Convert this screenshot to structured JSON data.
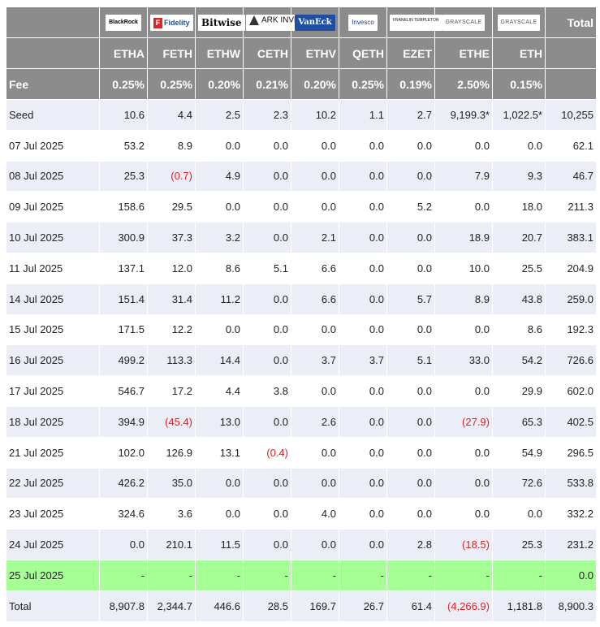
{
  "issuers": [
    {
      "logo": "BlackRock",
      "logo_icon": "blackrock-logo",
      "ticker": "ETHA",
      "fee": "0.25%"
    },
    {
      "logo": "Fidelity",
      "logo_icon": "fidelity-logo",
      "ticker": "FETH",
      "fee": "0.25%"
    },
    {
      "logo": "Bitwise",
      "logo_icon": "bitwise-logo",
      "ticker": "ETHW",
      "fee": "0.20%"
    },
    {
      "logo": "ARK INVEST",
      "logo_icon": "ark-invest-logo",
      "ticker": "CETH",
      "fee": "0.21%"
    },
    {
      "logo": "VanEck",
      "logo_icon": "vaneck-logo",
      "ticker": "ETHV",
      "fee": "0.20%"
    },
    {
      "logo": "Invesco",
      "logo_icon": "invesco-logo",
      "ticker": "QETH",
      "fee": "0.25%"
    },
    {
      "logo": "FRANKLIN TEMPLETON",
      "logo_icon": "franklin-templeton-logo",
      "ticker": "EZET",
      "fee": "0.19%"
    },
    {
      "logo": "GRAYSCALE",
      "logo_icon": "grayscale-logo",
      "ticker": "ETHE",
      "fee": "2.50%"
    },
    {
      "logo": "GRAYSCALE",
      "logo_icon": "grayscale-logo",
      "ticker": "ETH",
      "fee": "0.15%"
    }
  ],
  "header": {
    "total_label": "Total",
    "fee_label": "Fee"
  },
  "rows": [
    {
      "date": "Seed",
      "values": [
        "10.6",
        "4.4",
        "2.5",
        "2.3",
        "10.2",
        "1.1",
        "2.7",
        "9,199.3*",
        "1,022.5*"
      ],
      "total": "10,255"
    },
    {
      "date": "07 Jul 2025",
      "values": [
        "53.2",
        "8.9",
        "0.0",
        "0.0",
        "0.0",
        "0.0",
        "0.0",
        "0.0",
        "0.0"
      ],
      "total": "62.1"
    },
    {
      "date": "08 Jul 2025",
      "values": [
        "25.3",
        "(0.7)",
        "4.9",
        "0.0",
        "0.0",
        "0.0",
        "0.0",
        "7.9",
        "9.3"
      ],
      "total": "46.7"
    },
    {
      "date": "09 Jul 2025",
      "values": [
        "158.6",
        "29.5",
        "0.0",
        "0.0",
        "0.0",
        "0.0",
        "5.2",
        "0.0",
        "18.0"
      ],
      "total": "211.3"
    },
    {
      "date": "10 Jul 2025",
      "values": [
        "300.9",
        "37.3",
        "3.2",
        "0.0",
        "2.1",
        "0.0",
        "0.0",
        "18.9",
        "20.7"
      ],
      "total": "383.1"
    },
    {
      "date": "11 Jul 2025",
      "values": [
        "137.1",
        "12.0",
        "8.6",
        "5.1",
        "6.6",
        "0.0",
        "0.0",
        "10.0",
        "25.5"
      ],
      "total": "204.9"
    },
    {
      "date": "14 Jul 2025",
      "values": [
        "151.4",
        "31.4",
        "11.2",
        "0.0",
        "6.6",
        "0.0",
        "5.7",
        "8.9",
        "43.8"
      ],
      "total": "259.0"
    },
    {
      "date": "15 Jul 2025",
      "values": [
        "171.5",
        "12.2",
        "0.0",
        "0.0",
        "0.0",
        "0.0",
        "0.0",
        "0.0",
        "8.6"
      ],
      "total": "192.3"
    },
    {
      "date": "16 Jul 2025",
      "values": [
        "499.2",
        "113.3",
        "14.4",
        "0.0",
        "3.7",
        "3.7",
        "5.1",
        "33.0",
        "54.2"
      ],
      "total": "726.6"
    },
    {
      "date": "17 Jul 2025",
      "values": [
        "546.7",
        "17.2",
        "4.4",
        "3.8",
        "0.0",
        "0.0",
        "0.0",
        "0.0",
        "29.9"
      ],
      "total": "602.0"
    },
    {
      "date": "18 Jul 2025",
      "values": [
        "394.9",
        "(45.4)",
        "13.0",
        "0.0",
        "2.6",
        "0.0",
        "0.0",
        "(27.9)",
        "65.3"
      ],
      "total": "402.5"
    },
    {
      "date": "21 Jul 2025",
      "values": [
        "102.0",
        "126.9",
        "13.1",
        "(0.4)",
        "0.0",
        "0.0",
        "0.0",
        "0.0",
        "54.9"
      ],
      "total": "296.5"
    },
    {
      "date": "22 Jul 2025",
      "values": [
        "426.2",
        "35.0",
        "0.0",
        "0.0",
        "0.0",
        "0.0",
        "0.0",
        "0.0",
        "72.6"
      ],
      "total": "533.8"
    },
    {
      "date": "23 Jul 2025",
      "values": [
        "324.6",
        "3.6",
        "0.0",
        "0.0",
        "4.0",
        "0.0",
        "0.0",
        "0.0",
        "0.0"
      ],
      "total": "332.2"
    },
    {
      "date": "24 Jul 2025",
      "values": [
        "0.0",
        "210.1",
        "11.5",
        "0.0",
        "0.0",
        "0.0",
        "2.8",
        "(18.5)",
        "25.3"
      ],
      "total": "231.2"
    },
    {
      "date": "25 Jul 2025",
      "values": [
        "-",
        "-",
        "-",
        "-",
        "-",
        "-",
        "-",
        "-",
        "-"
      ],
      "total": "0.0",
      "highlight": true
    },
    {
      "date": "Total",
      "values": [
        "8,907.8",
        "2,344.7",
        "446.6",
        "28.5",
        "169.7",
        "26.7",
        "61.4",
        "(4,266.9)",
        "1,181.8"
      ],
      "total": "8,900.3"
    }
  ],
  "colors": {
    "header_bg": "#8c8c8c",
    "header_text": "#ffffff",
    "row_alt_bg": "#ebedf7",
    "row_bg": "#ffffff",
    "highlight_bg": "#a6ff95",
    "negative_text": "#e32020"
  }
}
